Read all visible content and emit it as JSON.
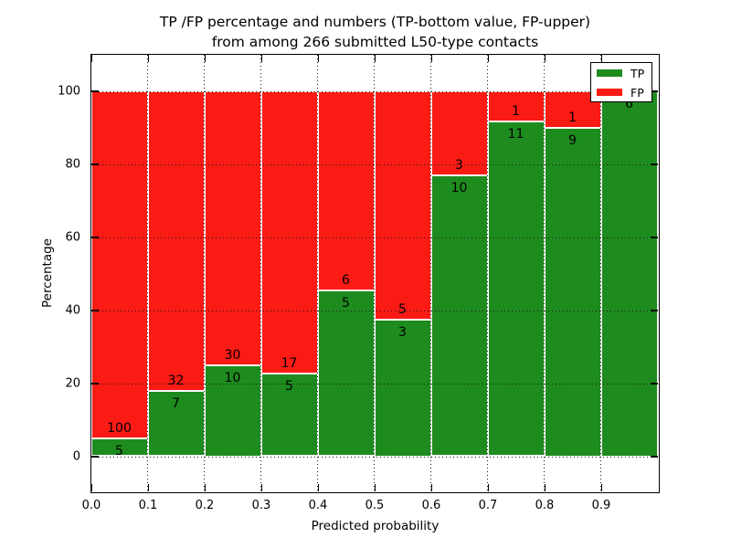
{
  "title": {
    "line1": "TP /FP percentage and numbers (TP-bottom value, FP-upper)",
    "line2": "from among 266 submitted L50-type contacts"
  },
  "x_axis": {
    "label": "Predicted probability",
    "ticks": [
      "0.0",
      "0.1",
      "0.2",
      "0.3",
      "0.4",
      "0.5",
      "0.6",
      "0.7",
      "0.8",
      "0.9"
    ]
  },
  "y_axis": {
    "label": "Percentage",
    "ticks": [
      "0",
      "20",
      "40",
      "60",
      "80",
      "100"
    ]
  },
  "legend": {
    "items": [
      {
        "label": "TP",
        "color": "#1e8b1e"
      },
      {
        "label": "FP",
        "color": "#fb1b15"
      }
    ]
  },
  "colors": {
    "tp": "#1e8b1e",
    "fp": "#fb1b15",
    "grid": "#1a1a1a",
    "background": "#ffffff"
  },
  "chart_data": {
    "type": "bar",
    "stacked": true,
    "normalized_to_percent": true,
    "title": "TP /FP percentage and numbers (TP-bottom value, FP-upper) from among 266 submitted L50-type contacts",
    "xlabel": "Predicted probability",
    "ylabel": "Percentage",
    "xlim": [
      0.0,
      1.0
    ],
    "ylim": [
      -10,
      110
    ],
    "grid": true,
    "legend_position": "upper right",
    "bin_start": [
      0.0,
      0.1,
      0.2,
      0.3,
      0.4,
      0.5,
      0.6,
      0.7,
      0.8,
      0.9
    ],
    "bin_width": 0.1,
    "series": [
      {
        "name": "TP",
        "counts": [
          5,
          7,
          10,
          5,
          5,
          3,
          10,
          11,
          9,
          6
        ]
      },
      {
        "name": "FP",
        "counts": [
          100,
          32,
          30,
          17,
          6,
          5,
          3,
          1,
          1,
          0
        ]
      }
    ],
    "tp_percent_of_bin": [
      4.76,
      17.95,
      25.0,
      22.73,
      45.45,
      37.5,
      76.92,
      91.67,
      90.0,
      100.0
    ],
    "total_contacts": 266
  }
}
